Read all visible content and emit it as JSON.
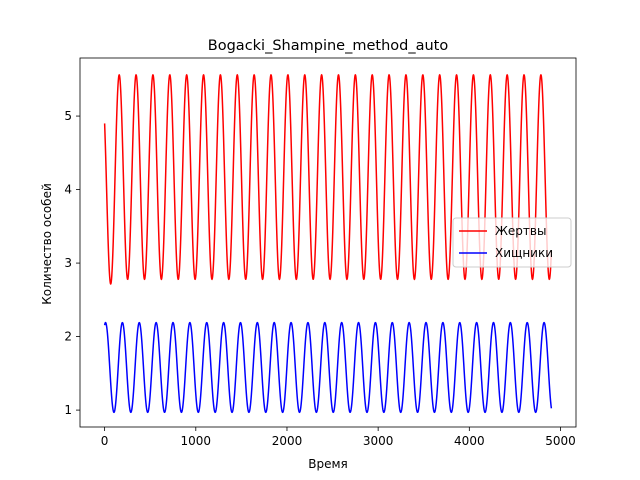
{
  "chart_data": {
    "type": "line",
    "title": "Bogacki_Shampine_method_auto",
    "xlabel": "Время",
    "ylabel": "Количество особей",
    "xlim": [
      -270,
      5170
    ],
    "ylim": [
      0.77,
      5.79
    ],
    "xticks": [
      0,
      1000,
      2000,
      3000,
      4000,
      5000
    ],
    "xtick_labels": [
      "0",
      "1000",
      "2000",
      "3000",
      "4000",
      "5000"
    ],
    "yticks": [
      1,
      2,
      3,
      4,
      5
    ],
    "ytick_labels": [
      "1",
      "2",
      "3",
      "4",
      "5"
    ],
    "grid": false,
    "legend_position": "center-right",
    "series": [
      {
        "name": "Жертвы",
        "color": "#ff0000",
        "model": "oscillation",
        "x_start": 0,
        "x_end": 4900,
        "start_value": 4.9,
        "min": 2.78,
        "max": 5.56,
        "period": 185,
        "first_peak_x": 160
      },
      {
        "name": "Хищники",
        "color": "#0000ff",
        "model": "oscillation",
        "x_start": 0,
        "x_end": 4900,
        "start_value": 2.03,
        "min": 0.97,
        "max": 2.19,
        "period": 185,
        "first_peak_x": 10
      }
    ]
  }
}
